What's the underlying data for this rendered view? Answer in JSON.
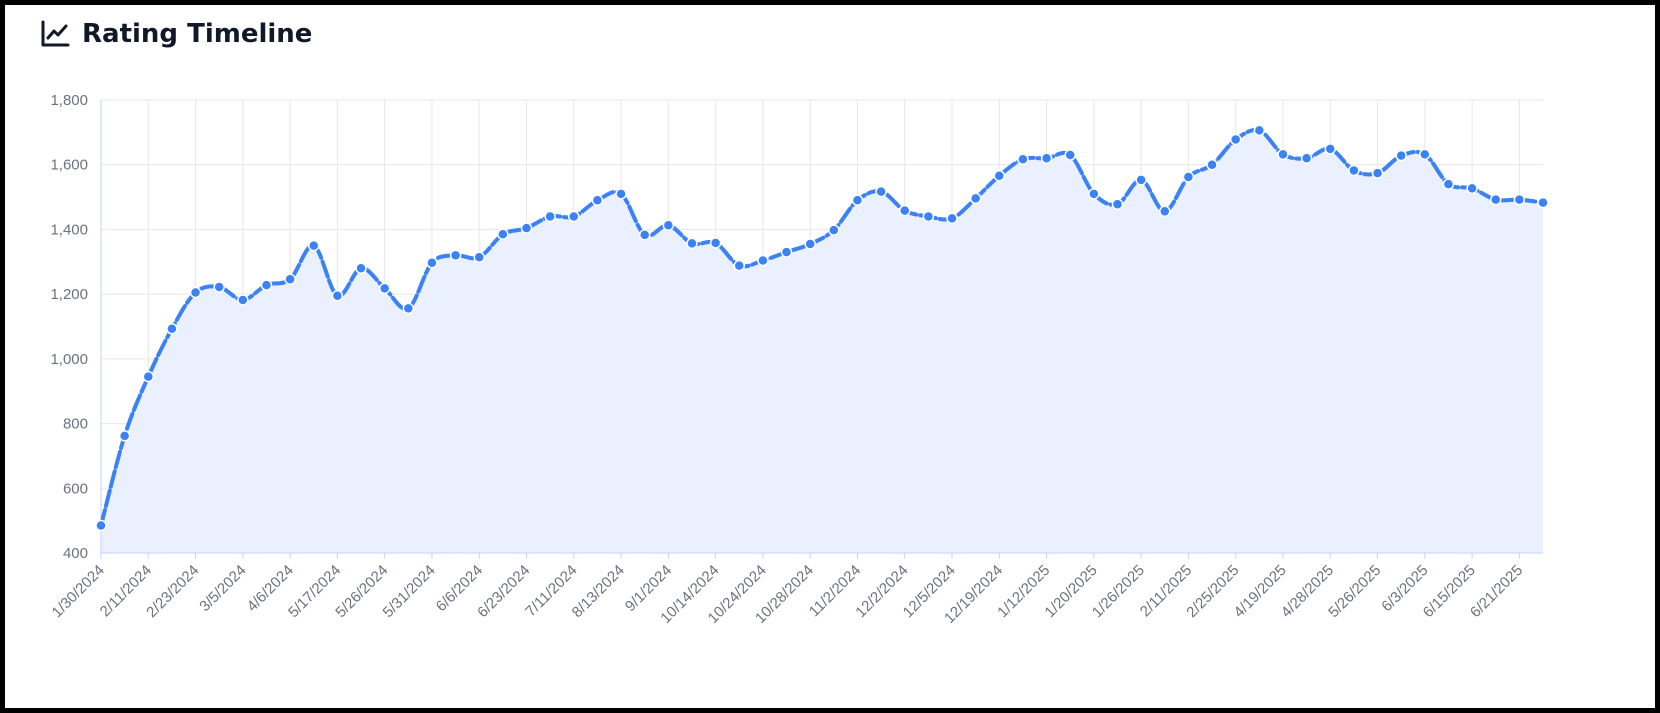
{
  "card": {
    "title": "Rating Timeline",
    "icon": "line-chart-icon"
  },
  "colors": {
    "line": "#3b82f6",
    "area": "#eaf0fd",
    "grid": "#e5e7eb",
    "axis": "#c7d2fe",
    "tick": "#6b7280"
  },
  "chart_data": {
    "type": "area",
    "title": "Rating Timeline",
    "xlabel": "",
    "ylabel": "",
    "ylim": [
      400,
      1800
    ],
    "yticks": [
      400,
      600,
      800,
      1000,
      1200,
      1400,
      1600,
      1800
    ],
    "ytick_labels": [
      "400",
      "600",
      "800",
      "1,000",
      "1,200",
      "1,400",
      "1,600",
      "1,800"
    ],
    "grid": true,
    "line_style": "dashed",
    "xtick_labels": [
      "1/30/2024",
      "2/11/2024",
      "2/23/2024",
      "3/5/2024",
      "4/6/2024",
      "5/17/2024",
      "5/26/2024",
      "5/31/2024",
      "6/6/2024",
      "6/23/2024",
      "7/11/2024",
      "8/13/2024",
      "9/1/2024",
      "10/14/2024",
      "10/24/2024",
      "10/28/2024",
      "11/2/2024",
      "12/2/2024",
      "12/5/2024",
      "12/19/2024",
      "1/12/2025",
      "1/20/2025",
      "1/26/2025",
      "2/11/2025",
      "2/25/2025",
      "4/19/2025",
      "4/28/2025",
      "5/26/2025",
      "6/3/2025",
      "6/15/2025",
      "6/21/2025"
    ],
    "series": [
      {
        "values": [
          485,
          762,
          945,
          1093,
          1205,
          1222,
          1182,
          1228,
          1246,
          1350,
          1195,
          1280,
          1218,
          1156,
          1297,
          1320,
          1314,
          1385,
          1404,
          1440,
          1440,
          1490,
          1510,
          1383,
          1413,
          1357,
          1358,
          1288,
          1304,
          1330,
          1355,
          1398,
          1490,
          1517,
          1458,
          1440,
          1434,
          1496,
          1566,
          1617,
          1620,
          1630,
          1510,
          1478,
          1553,
          1456,
          1562,
          1600,
          1678,
          1706,
          1632,
          1620,
          1649,
          1582,
          1574,
          1628,
          1632,
          1540,
          1527,
          1492,
          1492,
          1483
        ]
      }
    ]
  }
}
